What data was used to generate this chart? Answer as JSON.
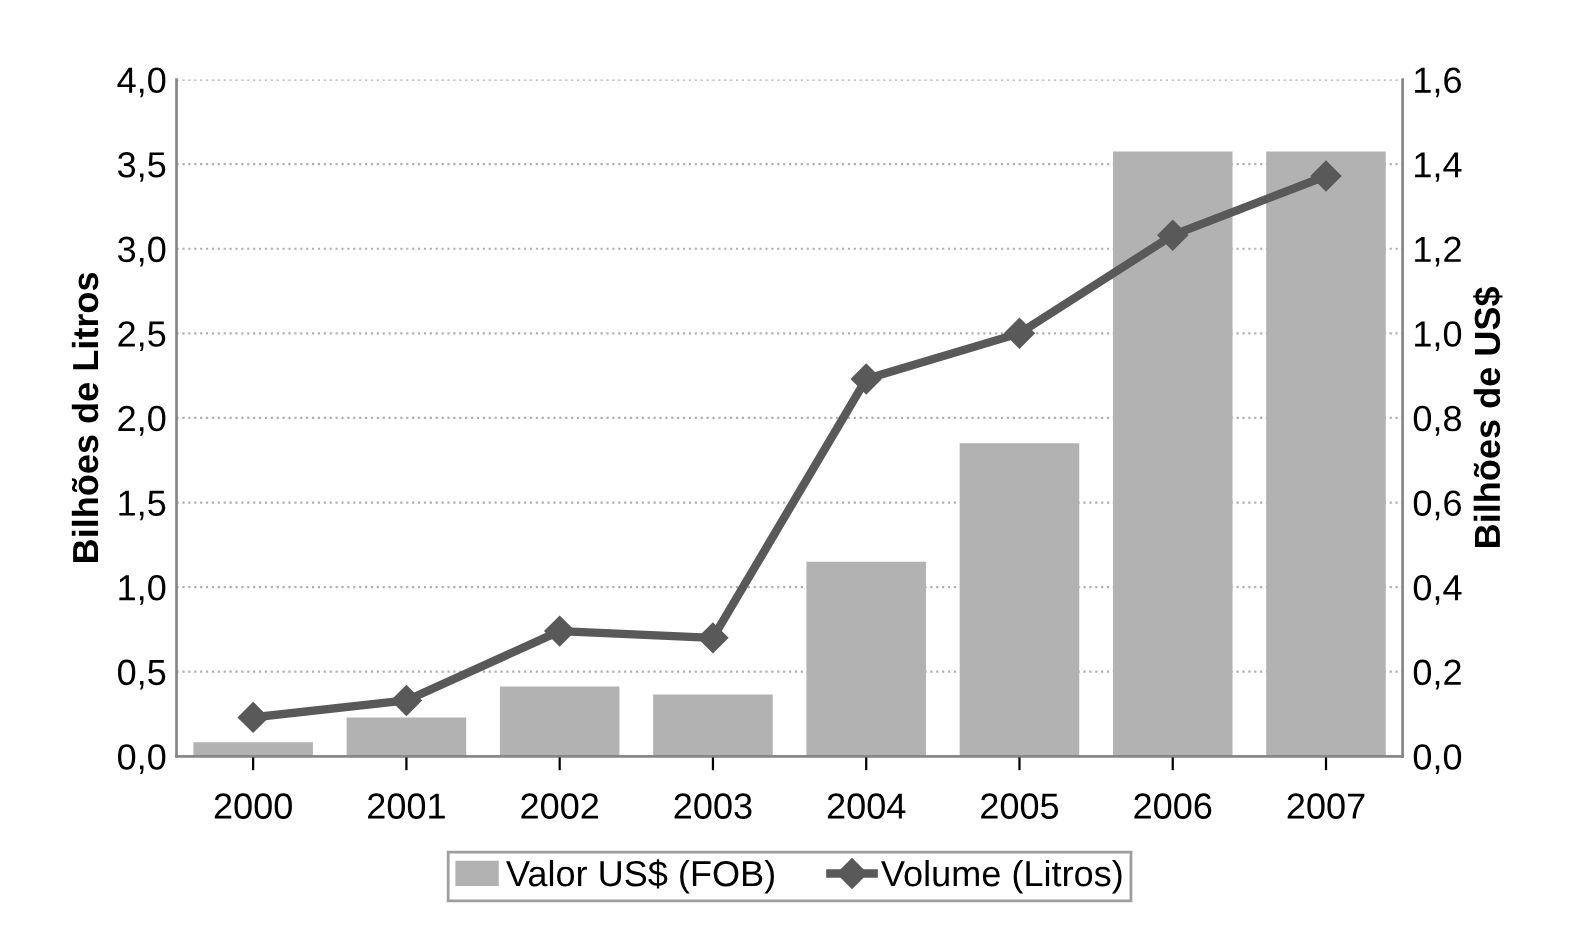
{
  "chart_data": {
    "type": "bar",
    "ylabel": "Bilhões de Litros",
    "y2label": "Bilhões de US$",
    "categories": [
      "2000",
      "2001",
      "2002",
      "2003",
      "2004",
      "2005",
      "2006",
      "2007"
    ],
    "series": [
      {
        "name": "Valor US$ (FOB)",
        "axis": "y2",
        "color": "#b2b2b2",
        "values": [
          0.033,
          0.092,
          0.165,
          0.146,
          0.46,
          0.74,
          1.43,
          1.43
        ]
      },
      {
        "name": "Volume (Litros)",
        "type": "line",
        "color": "#595959",
        "marker": "diamond",
        "values": [
          0.23,
          0.33,
          0.74,
          0.7,
          2.23,
          2.5,
          3.08,
          3.43
        ]
      }
    ],
    "ylim": [
      0,
      4.0
    ],
    "yticks": [
      {
        "value": 0,
        "label": "0,0"
      },
      {
        "value": 0.5,
        "label": "0,5"
      },
      {
        "value": 1.0,
        "label": "1,0"
      },
      {
        "value": 1.5,
        "label": "1,5"
      },
      {
        "value": 2.0,
        "label": "2,0"
      },
      {
        "value": 2.5,
        "label": "2,5"
      },
      {
        "value": 3.0,
        "label": "3,0"
      },
      {
        "value": 3.5,
        "label": "3,5"
      },
      {
        "value": 4.0,
        "label": "4,0"
      }
    ],
    "y2lim": [
      0,
      1.6
    ],
    "y2ticks": [
      {
        "value": 0,
        "label": "0,0"
      },
      {
        "value": 0.2,
        "label": "0,2"
      },
      {
        "value": 0.4,
        "label": "0,4"
      },
      {
        "value": 0.6,
        "label": "0,6"
      },
      {
        "value": 0.8,
        "label": "0,8"
      },
      {
        "value": 1.0,
        "label": "1,0"
      },
      {
        "value": 1.2,
        "label": "1,2"
      },
      {
        "value": 1.4,
        "label": "1,4"
      },
      {
        "value": 1.6,
        "label": "1,6"
      }
    ],
    "grid": "y",
    "legend": "bottom"
  }
}
